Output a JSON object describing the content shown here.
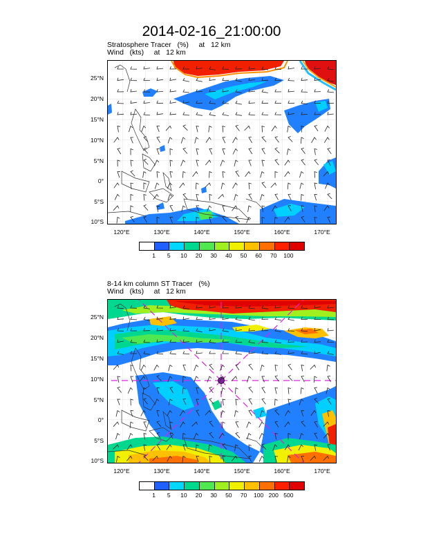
{
  "title": "2014-02-16_21:00:00",
  "panels": [
    {
      "line1": "Stratosphere Tracer   (%)     at   12 km",
      "line2": "Wind   (kts)     at   12 km",
      "lat_labels": [
        "25°N",
        "20°N",
        "15°N",
        "10°N",
        "5°N",
        "0°",
        "5°S",
        "10°S"
      ],
      "lon_labels": [
        "120°E",
        "130°E",
        "140°E",
        "150°E",
        "160°E",
        "170°E"
      ],
      "legend_levels": [
        "1",
        "5",
        "10",
        "20",
        "30",
        "40",
        "50",
        "60",
        "70",
        "100"
      ],
      "legend_colors": [
        "#ffffff",
        "#2060ff",
        "#00d8ff",
        "#00d890",
        "#50e850",
        "#a0f020",
        "#f0f000",
        "#ffc000",
        "#ff7000",
        "#ff2000",
        "#e00000"
      ]
    },
    {
      "line1": "8-14 km column ST Tracer   (%)",
      "line2": "Wind   (kts)     at   12 km",
      "lat_labels": [
        "25°N",
        "20°N",
        "15°N",
        "10°N",
        "5°N",
        "0°",
        "5°S",
        "10°S"
      ],
      "lon_labels": [
        "120°E",
        "130°E",
        "140°E",
        "150°E",
        "160°E",
        "170°E"
      ],
      "legend_levels": [
        "1",
        "5",
        "10",
        "20",
        "30",
        "50",
        "70",
        "100",
        "200",
        "500"
      ],
      "legend_colors": [
        "#ffffff",
        "#2060ff",
        "#00d8ff",
        "#00d890",
        "#50e850",
        "#a0f020",
        "#f0f000",
        "#ffc000",
        "#ff7000",
        "#ff2000",
        "#e00000"
      ]
    }
  ]
}
